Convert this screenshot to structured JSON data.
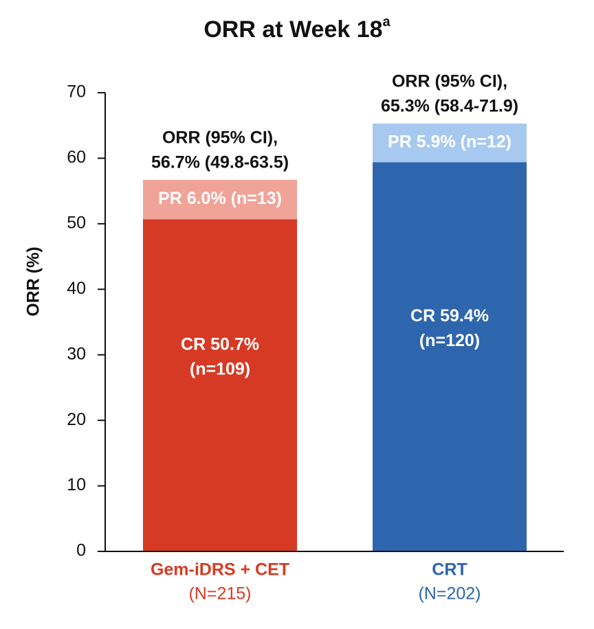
{
  "chart_data": {
    "type": "stacked-bar",
    "title": "ORR at Week 18",
    "title_superscript": "a",
    "ylabel": "ORR (%)",
    "categories": [
      "Gem-iDRS + CET",
      "CRT"
    ],
    "category_sublabels": [
      "(N=215)",
      "(N=202)"
    ],
    "series": [
      {
        "colors": [
          "#d63a24",
          "#2e66ad"
        ],
        "values": [
          50.7,
          59.4
        ],
        "value_labels": [
          [
            "CR 50.7%",
            "(n=109)"
          ],
          [
            "CR 59.4%",
            "(n=120)"
          ]
        ]
      },
      {
        "colors": [
          "#f0a397",
          "#a7c9ef"
        ],
        "values": [
          6.0,
          5.9
        ],
        "value_labels": [
          "PR 6.0% (n=13)",
          "PR 5.9% (n=12)"
        ]
      }
    ],
    "annotations": [
      [
        "ORR (95% CI),",
        "56.7% (49.8-63.5)"
      ],
      [
        "ORR (95% CI),",
        "65.3% (58.4-71.9)"
      ]
    ],
    "ylim": [
      0,
      70
    ],
    "yticks": [
      0,
      10,
      20,
      30,
      40,
      50,
      60,
      70
    ],
    "grid": false
  }
}
